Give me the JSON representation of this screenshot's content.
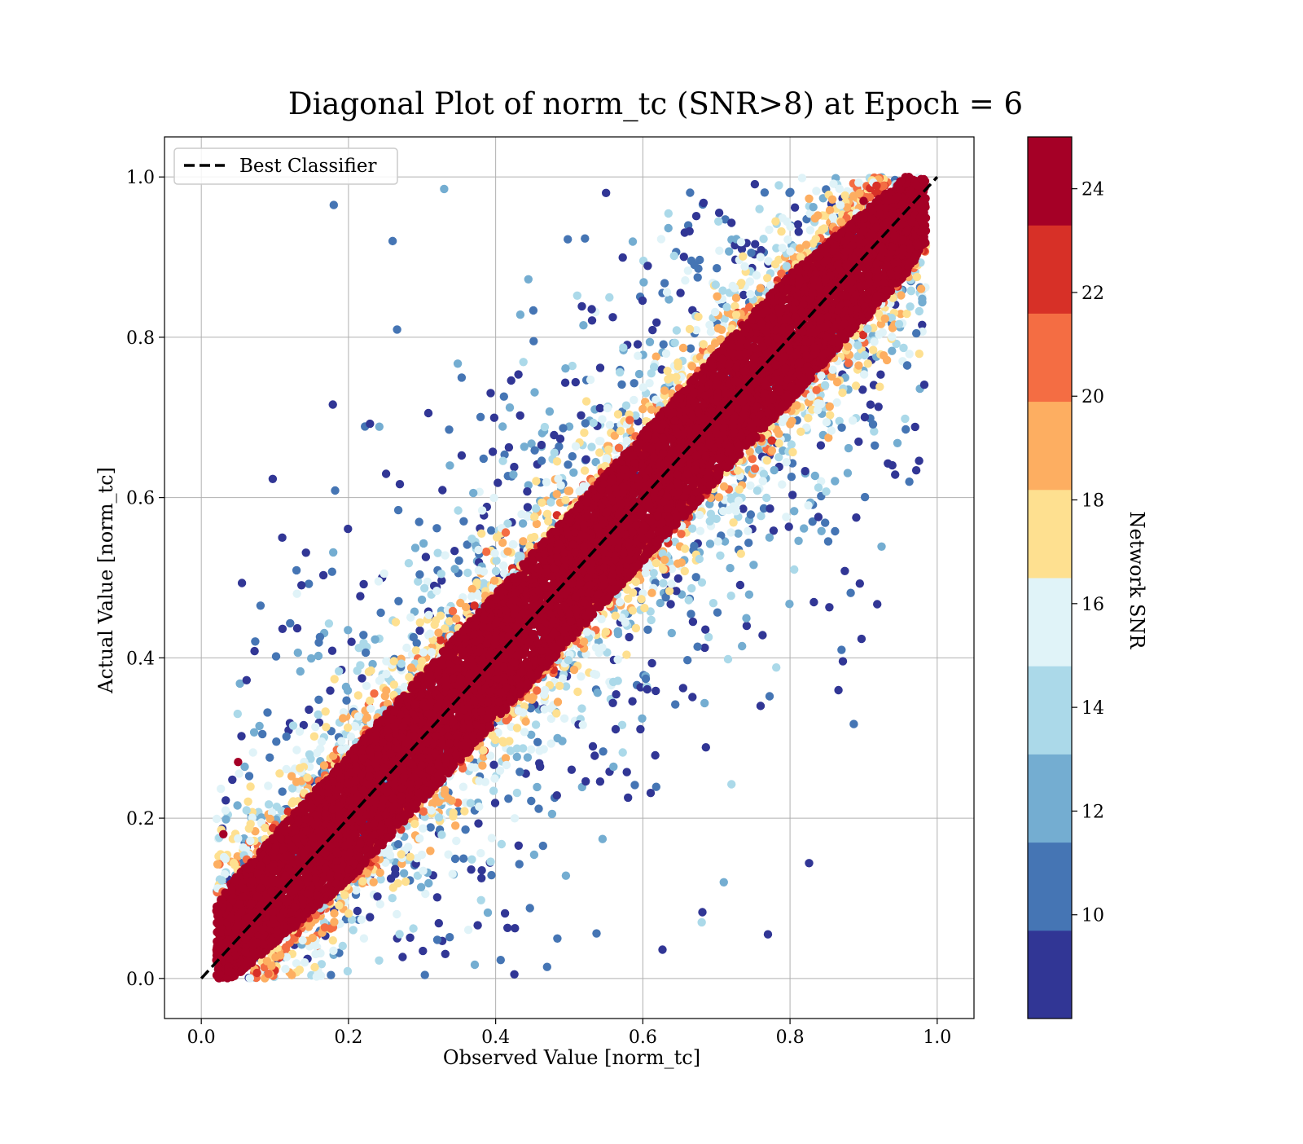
{
  "chart_data": {
    "type": "scatter",
    "title": "Diagonal Plot of norm_tc (SNR>8) at Epoch = 6",
    "xlabel": "Observed Value [norm_tc]",
    "ylabel": "Actual Value [norm_tc]",
    "xlim": [
      -0.05,
      1.05
    ],
    "ylim": [
      -0.05,
      1.05
    ],
    "xticks": [
      "0.0",
      "0.2",
      "0.4",
      "0.6",
      "0.8",
      "1.0"
    ],
    "yticks": [
      "0.0",
      "0.2",
      "0.4",
      "0.6",
      "0.8",
      "1.0"
    ],
    "grid": true,
    "legend": {
      "placement": "upper-left",
      "entries": [
        {
          "label": "Best Classifier",
          "style": "black dashed line"
        }
      ]
    },
    "reference_line": {
      "name": "Best Classifier",
      "x": [
        0,
        1
      ],
      "y": [
        0,
        1
      ],
      "color": "#000000"
    },
    "colorbar": {
      "label": "Network SNR",
      "range": [
        8,
        25
      ],
      "ticks": [
        "10",
        "12",
        "14",
        "16",
        "18",
        "20",
        "22",
        "24"
      ],
      "tick_values": [
        10,
        12,
        14,
        16,
        18,
        20,
        22,
        24
      ],
      "colors": [
        "#313695",
        "#4575b4",
        "#74add1",
        "#abd9e9",
        "#e0f3f8",
        "#fee090",
        "#fdae61",
        "#f46d43",
        "#d73027",
        "#a50026"
      ]
    },
    "series": [
      {
        "description": "samples colored by Network SNR",
        "distribution": "dense band around y = x, width grows at low SNR; high-SNR (>24) points form the core band, low-SNR points scatter to the outside",
        "core_band_halfwidth": 0.08,
        "sample_points": [
          {
            "x": 0.18,
            "y": 0.965,
            "snr": 11
          },
          {
            "x": 0.33,
            "y": 0.985,
            "snr": 13
          },
          {
            "x": 0.26,
            "y": 0.92,
            "snr": 11
          },
          {
            "x": 0.55,
            "y": 0.98,
            "snr": 9
          },
          {
            "x": 0.77,
            "y": 0.055,
            "snr": 9
          },
          {
            "x": 0.87,
            "y": 0.41,
            "snr": 11
          },
          {
            "x": 0.89,
            "y": 0.575,
            "snr": 9
          },
          {
            "x": 0.71,
            "y": 0.12,
            "snr": 13
          },
          {
            "x": 0.68,
            "y": 0.07,
            "snr": 14
          },
          {
            "x": 0.76,
            "y": 0.34,
            "snr": 9
          },
          {
            "x": 0.11,
            "y": 0.55,
            "snr": 9
          },
          {
            "x": 0.13,
            "y": 0.48,
            "snr": 15
          },
          {
            "x": 0.05,
            "y": 0.27,
            "snr": 24
          },
          {
            "x": 0.03,
            "y": 0.18,
            "snr": 24
          },
          {
            "x": 0.9,
            "y": 0.97,
            "snr": 24
          },
          {
            "x": 0.5,
            "y": 0.5,
            "snr": 24
          },
          {
            "x": 0.3,
            "y": 0.32,
            "snr": 24
          },
          {
            "x": 0.7,
            "y": 0.68,
            "snr": 24
          }
        ]
      }
    ]
  }
}
